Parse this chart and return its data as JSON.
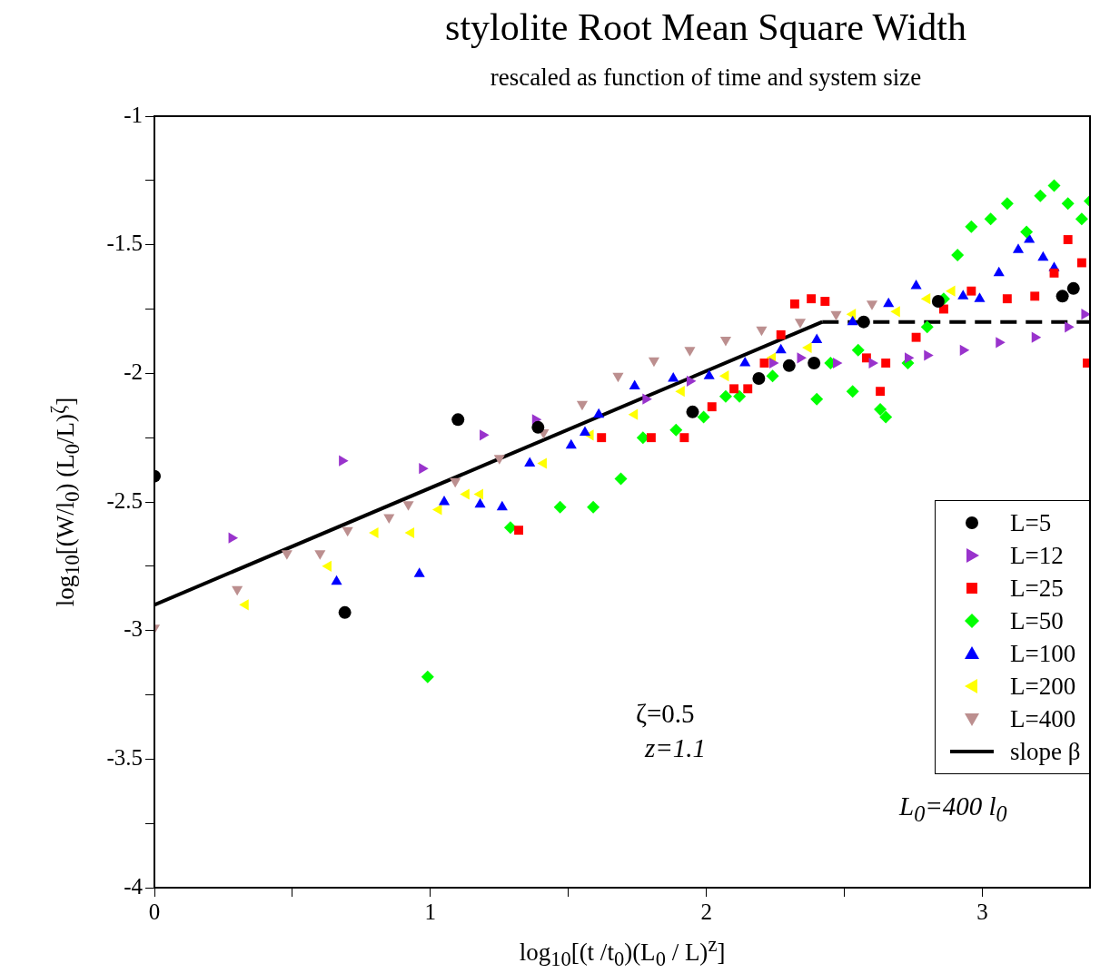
{
  "chart_data": {
    "type": "scatter",
    "title": "stylolite Root Mean Square Width",
    "subtitle": "rescaled as function of time and system size",
    "xlabel": "log$_{10}$[(t /t$_{0}$)(L$_{0}$ / L)$^{z}$]",
    "ylabel": "log$_{10}$[(W/l$_{0}$) (L$_{0}$/L)$^{ζ}$]",
    "annotations": [
      "ζ=0.5",
      "z=1.1",
      "L$_{0}$=400 l$_{0}$"
    ],
    "xlim": [
      0,
      3.39
    ],
    "xticks": [
      0,
      {
        "value": 0.5,
        "label": null
      },
      1,
      {
        "value": 1.5,
        "label": null
      },
      2,
      {
        "value": 2.5,
        "label": null
      },
      3
    ],
    "ylim": [
      -4,
      -1
    ],
    "yticks": [
      -4,
      {
        "value": -3.75,
        "label": null
      },
      -3.5,
      {
        "value": -3.25,
        "label": null
      },
      -3,
      {
        "value": -2.75,
        "label": null
      },
      -2.5,
      {
        "value": -2.25,
        "label": null
      },
      -2,
      {
        "value": -1.75,
        "label": null
      },
      -1.5,
      {
        "value": -1.25,
        "label": null
      },
      -1
    ],
    "grid": false,
    "legend": "right",
    "series": [
      {
        "name": "L=5",
        "color": "#000000",
        "marker": "circle",
        "x": [
          0,
          0.69,
          1.1,
          1.39,
          1.95,
          2.19,
          2.3,
          2.39,
          2.57,
          2.84,
          3.29,
          3.33
        ],
        "values": [
          -2.4,
          -2.93,
          -2.18,
          -2.21,
          -2.15,
          -2.02,
          -1.97,
          -1.96,
          -1.8,
          -1.72,
          -1.7,
          -1.67
        ]
      },
      {
        "name": "L=12",
        "color": "#9933cc",
        "marker": "triangle",
        "x": [
          0.28,
          0.68,
          0.97,
          1.19,
          1.38,
          1.78,
          1.94,
          2.24,
          2.34,
          2.47,
          2.6,
          2.73,
          2.8,
          2.93,
          3.06,
          3.19,
          3.31,
          3.37
        ],
        "values": [
          -2.64,
          -2.34,
          -2.37,
          -2.24,
          -2.18,
          -2.1,
          -2.03,
          -1.96,
          -1.94,
          -1.96,
          -1.96,
          -1.94,
          -1.93,
          -1.91,
          -1.88,
          -1.86,
          -1.82,
          -1.77
        ]
      },
      {
        "name": "L=25",
        "color": "#ff0000",
        "marker": "square",
        "x": [
          1.32,
          1.62,
          1.8,
          1.92,
          2.02,
          2.1,
          2.15,
          2.21,
          2.27,
          2.32,
          2.38,
          2.43,
          2.58,
          2.63,
          2.65,
          2.76,
          2.86,
          2.96,
          3.09,
          3.19,
          3.26,
          3.31,
          3.36,
          3.38
        ],
        "values": [
          -2.61,
          -2.25,
          -2.25,
          -2.25,
          -2.13,
          -2.06,
          -2.06,
          -1.96,
          -1.85,
          -1.73,
          -1.71,
          -1.72,
          -1.94,
          -2.07,
          -1.96,
          -1.86,
          -1.75,
          -1.68,
          -1.71,
          -1.7,
          -1.61,
          -1.48,
          -1.57,
          -1.96
        ]
      },
      {
        "name": "L=50",
        "color": "#00ff00",
        "marker": "diamond",
        "x": [
          0.99,
          1.29,
          1.47,
          1.59,
          1.69,
          1.77,
          1.89,
          1.99,
          2.07,
          2.12,
          2.24,
          2.4,
          2.45,
          2.53,
          2.55,
          2.63,
          2.65,
          2.73,
          2.8,
          2.86,
          2.91,
          2.96,
          3.03,
          3.09,
          3.16,
          3.21,
          3.26,
          3.31,
          3.36,
          3.39
        ],
        "values": [
          -3.18,
          -2.6,
          -2.52,
          -2.52,
          -2.41,
          -2.25,
          -2.22,
          -2.17,
          -2.09,
          -2.09,
          -2.01,
          -2.1,
          -1.96,
          -2.07,
          -1.91,
          -2.14,
          -2.17,
          -1.96,
          -1.82,
          -1.71,
          -1.54,
          -1.43,
          -1.4,
          -1.34,
          -1.45,
          -1.31,
          -1.27,
          -1.34,
          -1.4,
          -1.33
        ]
      },
      {
        "name": "L=100",
        "color": "#0000ff",
        "marker": "triangle",
        "x": [
          0.66,
          0.96,
          1.05,
          1.18,
          1.26,
          1.36,
          1.51,
          1.56,
          1.61,
          1.74,
          1.88,
          2.01,
          2.14,
          2.27,
          2.4,
          2.53,
          2.66,
          2.76,
          2.93,
          2.99,
          3.06,
          3.13,
          3.17,
          3.22,
          3.26
        ],
        "values": [
          -2.81,
          -2.78,
          -2.5,
          -2.51,
          -2.52,
          -2.35,
          -2.28,
          -2.23,
          -2.16,
          -2.05,
          -2.02,
          -2.01,
          -1.96,
          -1.91,
          -1.87,
          -1.8,
          -1.73,
          -1.66,
          -1.7,
          -1.71,
          -1.61,
          -1.52,
          -1.48,
          -1.55,
          -1.59
        ]
      },
      {
        "name": "L=200",
        "color": "#ffff00",
        "marker": "triangle",
        "x": [
          0.33,
          0.63,
          0.8,
          0.93,
          1.03,
          1.13,
          1.18,
          1.41,
          1.58,
          1.74,
          1.91,
          2.07,
          2.24,
          2.37,
          2.53,
          2.69,
          2.8,
          2.89
        ],
        "values": [
          -2.9,
          -2.75,
          -2.62,
          -2.62,
          -2.53,
          -2.47,
          -2.47,
          -2.35,
          -2.24,
          -2.16,
          -2.07,
          -2.01,
          -1.94,
          -1.9,
          -1.77,
          -1.76,
          -1.71,
          -1.68
        ]
      },
      {
        "name": "L=400",
        "color": "#bc8f8f",
        "marker": "triangle",
        "x": [
          0,
          0.3,
          0.48,
          0.6,
          0.7,
          0.85,
          0.92,
          1.09,
          1.25,
          1.41,
          1.55,
          1.68,
          1.81,
          1.94,
          2.07,
          2.2,
          2.34,
          2.47,
          2.6
        ],
        "values": [
          -2.99,
          -2.84,
          -2.7,
          -2.7,
          -2.61,
          -2.56,
          -2.51,
          -2.42,
          -2.33,
          -2.23,
          -2.12,
          -2.01,
          -1.95,
          -1.91,
          -1.87,
          -1.83,
          -1.8,
          -1.77,
          -1.73
        ]
      },
      {
        "name": "slope β",
        "type": "line",
        "color": "#000000",
        "marker": "none",
        "line_style": "solid",
        "x": [
          0,
          2.42
        ],
        "values": [
          -2.9,
          -1.8
        ]
      },
      {
        "type": "line",
        "color": "#000000",
        "marker": "none",
        "line_style": "dashed",
        "x": [
          2.42,
          3.39
        ],
        "values": [
          -1.8,
          -1.8
        ]
      }
    ]
  }
}
